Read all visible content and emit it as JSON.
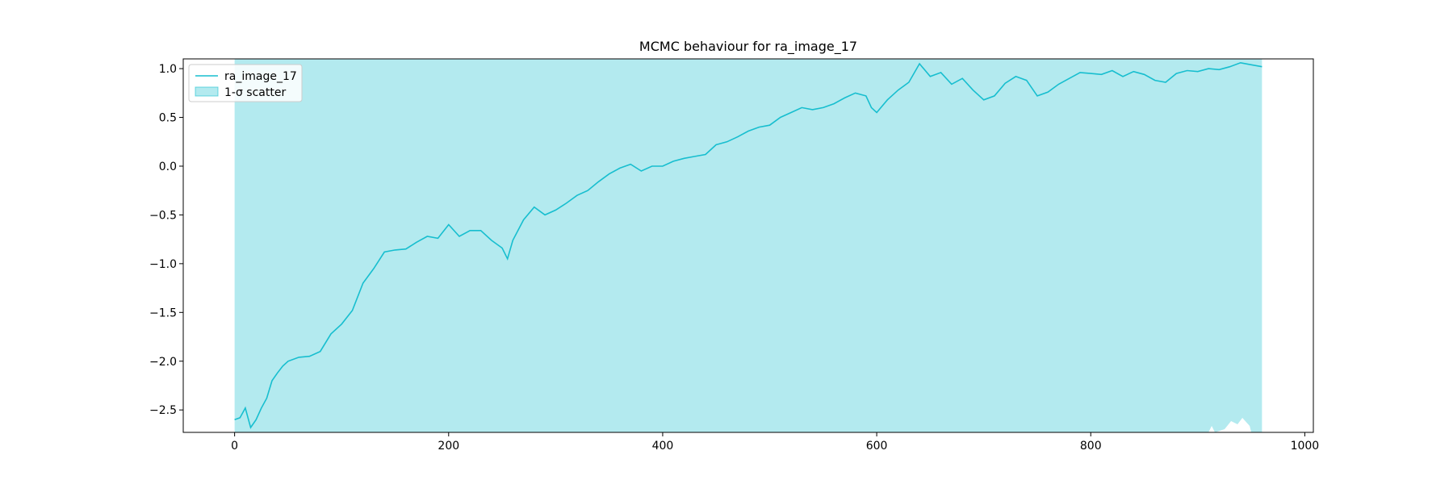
{
  "chart_data": {
    "type": "line",
    "title": "MCMC behaviour for ra_image_17",
    "xlabel": "",
    "ylabel": "",
    "xlim": [
      -48,
      1008
    ],
    "ylim": [
      -2.73,
      1.1
    ],
    "x_ticks": [
      0,
      200,
      400,
      600,
      800,
      1000
    ],
    "x_tick_labels": [
      "0",
      "200",
      "400",
      "600",
      "800",
      "1000"
    ],
    "y_ticks": [
      1.0,
      0.5,
      0.0,
      -0.5,
      -1.0,
      -1.5,
      -2.0,
      -2.5
    ],
    "y_tick_labels": [
      "1.0",
      "0.5",
      "0.0",
      "−0.5",
      "−1.0",
      "−1.5",
      "−2.0",
      "−2.5"
    ],
    "grid": false,
    "legend_position": "top-left",
    "series": [
      {
        "name": "ra_image_17",
        "color": "#17becf",
        "x": [
          0,
          5,
          10,
          15,
          20,
          25,
          30,
          35,
          40,
          45,
          50,
          60,
          70,
          80,
          90,
          100,
          110,
          120,
          130,
          140,
          150,
          160,
          170,
          180,
          190,
          200,
          210,
          220,
          230,
          240,
          250,
          255,
          260,
          270,
          280,
          290,
          300,
          310,
          320,
          330,
          340,
          350,
          360,
          370,
          380,
          390,
          400,
          410,
          420,
          430,
          440,
          450,
          460,
          470,
          480,
          490,
          500,
          510,
          520,
          530,
          540,
          550,
          560,
          570,
          580,
          590,
          595,
          600,
          610,
          620,
          630,
          640,
          650,
          660,
          670,
          680,
          690,
          700,
          710,
          720,
          730,
          740,
          750,
          760,
          770,
          780,
          790,
          800,
          810,
          820,
          830,
          840,
          850,
          860,
          870,
          880,
          890,
          900,
          910,
          920,
          930,
          940,
          950,
          960
        ],
        "values": [
          -2.6,
          -2.58,
          -2.48,
          -2.68,
          -2.6,
          -2.48,
          -2.38,
          -2.2,
          -2.12,
          -2.05,
          -2.0,
          -1.96,
          -1.95,
          -1.9,
          -1.72,
          -1.62,
          -1.48,
          -1.2,
          -1.05,
          -0.88,
          -0.86,
          -0.85,
          -0.78,
          -0.72,
          -0.74,
          -0.6,
          -0.72,
          -0.66,
          -0.66,
          -0.76,
          -0.84,
          -0.95,
          -0.76,
          -0.55,
          -0.42,
          -0.5,
          -0.45,
          -0.38,
          -0.3,
          -0.25,
          -0.16,
          -0.08,
          -0.02,
          0.02,
          -0.05,
          0.0,
          0.0,
          0.05,
          0.08,
          0.1,
          0.12,
          0.22,
          0.25,
          0.3,
          0.36,
          0.4,
          0.42,
          0.5,
          0.55,
          0.6,
          0.58,
          0.6,
          0.64,
          0.7,
          0.75,
          0.72,
          0.6,
          0.55,
          0.68,
          0.78,
          0.86,
          1.05,
          0.92,
          0.96,
          0.84,
          0.9,
          0.78,
          0.68,
          0.72,
          0.85,
          0.92,
          0.88,
          0.72,
          0.76,
          0.84,
          0.9,
          0.96,
          0.95,
          0.94,
          0.98,
          0.92,
          0.97,
          0.94,
          0.88,
          0.86,
          0.95,
          0.98,
          0.97,
          1.0,
          0.99,
          1.02,
          1.06,
          1.04,
          1.02
        ]
      }
    ],
    "band": {
      "name": "1-σ scatter",
      "color": "#17becf",
      "alpha": 0.33,
      "x_start": 0,
      "x_end": 960
    }
  }
}
